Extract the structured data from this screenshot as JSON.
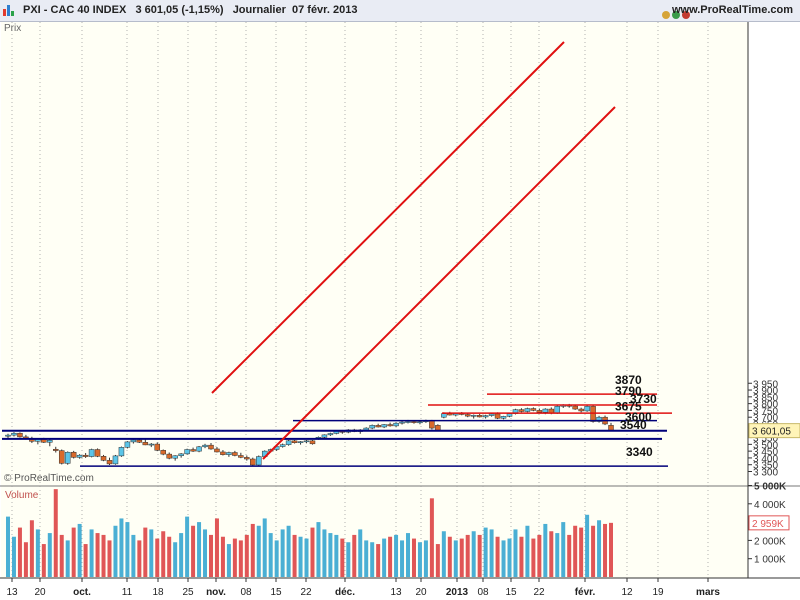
{
  "header": {
    "title": "PXI - CAC 40 INDEX   3 601,05 (-1,15%)   Journalier  07 févr. 2013",
    "site": "www.ProRealTime.com"
  },
  "labels": {
    "price_axis_name": "Prix",
    "volume_panel_name": "Volume",
    "copyright": "© ProRealTime.com"
  },
  "chart_data": [
    {
      "type": "candlestick",
      "ylim": [
        3280,
        3950
      ],
      "yticks": [
        3300,
        3350,
        3400,
        3450,
        3500,
        3550,
        3600,
        3650,
        3700,
        3750,
        3800,
        3850,
        3900,
        3950
      ],
      "ytick_labels": [
        "3 300",
        "3 350",
        "3 400",
        "3 450",
        "3 500",
        "3 550",
        "3 600",
        "3 650",
        "3 700",
        "3 750",
        "3 800",
        "3 850",
        "3 900",
        "3 950"
      ],
      "last_price": 3601.05,
      "last_price_label": "3 601,05",
      "x_tick_labels": [
        "13",
        "20",
        "oct.",
        "11",
        "18",
        "25",
        "nov.",
        "08",
        "15",
        "22",
        "déc.",
        "13",
        "20",
        "2013",
        "08",
        "15",
        "22",
        "févr.",
        "12",
        "19",
        "mars"
      ],
      "x_tick_bold": [
        "oct.",
        "nov.",
        "déc.",
        "2013",
        "févr.",
        "mars"
      ],
      "candles": [
        [
          3560,
          3578,
          3540,
          3568
        ],
        [
          3568,
          3590,
          3558,
          3582
        ],
        [
          3582,
          3588,
          3550,
          3555
        ],
        [
          3555,
          3570,
          3535,
          3542
        ],
        [
          3542,
          3556,
          3510,
          3522
        ],
        [
          3522,
          3546,
          3500,
          3540
        ],
        [
          3540,
          3548,
          3510,
          3515
        ],
        [
          3515,
          3536,
          3486,
          3530
        ],
        [
          3464,
          3482,
          3440,
          3454
        ],
        [
          3454,
          3462,
          3352,
          3360
        ],
        [
          3360,
          3448,
          3350,
          3442
        ],
        [
          3442,
          3452,
          3396,
          3404
        ],
        [
          3404,
          3428,
          3394,
          3420
        ],
        [
          3420,
          3436,
          3400,
          3410
        ],
        [
          3410,
          3468,
          3404,
          3462
        ],
        [
          3462,
          3470,
          3406,
          3412
        ],
        [
          3412,
          3422,
          3376,
          3382
        ],
        [
          3382,
          3402,
          3348,
          3356
        ],
        [
          3356,
          3422,
          3350,
          3415
        ],
        [
          3415,
          3484,
          3408,
          3478
        ],
        [
          3478,
          3524,
          3470,
          3518
        ],
        [
          3518,
          3534,
          3506,
          3532
        ],
        [
          3532,
          3544,
          3510,
          3515
        ],
        [
          3515,
          3535,
          3494,
          3496
        ],
        [
          3496,
          3510,
          3480,
          3502
        ],
        [
          3502,
          3514,
          3450,
          3456
        ],
        [
          3456,
          3462,
          3420,
          3428
        ],
        [
          3428,
          3440,
          3390,
          3398
        ],
        [
          3398,
          3420,
          3380,
          3416
        ],
        [
          3416,
          3436,
          3402,
          3430
        ],
        [
          3430,
          3468,
          3424,
          3462
        ],
        [
          3462,
          3476,
          3444,
          3450
        ],
        [
          3450,
          3488,
          3442,
          3482
        ],
        [
          3482,
          3504,
          3472,
          3494
        ],
        [
          3494,
          3510,
          3460,
          3466
        ],
        [
          3466,
          3480,
          3440,
          3444
        ],
        [
          3444,
          3458,
          3418,
          3424
        ],
        [
          3424,
          3446,
          3408,
          3440
        ],
        [
          3440,
          3452,
          3412,
          3418
        ],
        [
          3418,
          3438,
          3398,
          3404
        ],
        [
          3404,
          3418,
          3380,
          3392
        ],
        [
          3392,
          3402,
          3340,
          3348
        ],
        [
          3348,
          3418,
          3340,
          3410
        ],
        [
          3410,
          3456,
          3404,
          3450
        ],
        [
          3450,
          3468,
          3440,
          3462
        ],
        [
          3462,
          3490,
          3452,
          3484
        ],
        [
          3484,
          3506,
          3476,
          3498
        ],
        [
          3498,
          3532,
          3490,
          3526
        ],
        [
          3526,
          3532,
          3506,
          3512
        ],
        [
          3512,
          3524,
          3498,
          3520
        ],
        [
          3520,
          3532,
          3508,
          3526
        ],
        [
          3526,
          3532,
          3498,
          3504
        ],
        [
          3540,
          3558,
          3534,
          3552
        ],
        [
          3552,
          3574,
          3546,
          3570
        ],
        [
          3570,
          3586,
          3562,
          3580
        ],
        [
          3580,
          3602,
          3574,
          3596
        ],
        [
          3596,
          3606,
          3578,
          3590
        ],
        [
          3590,
          3612,
          3582,
          3606
        ],
        [
          3606,
          3614,
          3590,
          3594
        ],
        [
          3594,
          3612,
          3578,
          3606
        ],
        [
          3606,
          3626,
          3596,
          3620
        ],
        [
          3620,
          3646,
          3612,
          3640
        ],
        [
          3640,
          3652,
          3624,
          3628
        ],
        [
          3628,
          3650,
          3620,
          3646
        ],
        [
          3646,
          3660,
          3630,
          3636
        ],
        [
          3636,
          3662,
          3626,
          3656
        ],
        [
          3656,
          3672,
          3646,
          3664
        ],
        [
          3664,
          3680,
          3654,
          3668
        ],
        [
          3668,
          3678,
          3652,
          3660
        ],
        [
          3660,
          3672,
          3648,
          3666
        ],
        [
          3666,
          3682,
          3658,
          3674
        ],
        [
          3674,
          3680,
          3610,
          3620
        ],
        [
          3640,
          3648,
          3596,
          3602
        ],
        [
          3700,
          3736,
          3692,
          3726
        ],
        [
          3726,
          3740,
          3712,
          3716
        ],
        [
          3716,
          3734,
          3706,
          3728
        ],
        [
          3728,
          3738,
          3714,
          3720
        ],
        [
          3720,
          3732,
          3700,
          3708
        ],
        [
          3708,
          3720,
          3690,
          3714
        ],
        [
          3714,
          3724,
          3698,
          3702
        ],
        [
          3702,
          3718,
          3690,
          3712
        ],
        [
          3712,
          3730,
          3704,
          3724
        ],
        [
          3724,
          3736,
          3686,
          3692
        ],
        [
          3692,
          3710,
          3684,
          3706
        ],
        [
          3706,
          3730,
          3700,
          3726
        ],
        [
          3726,
          3762,
          3720,
          3756
        ],
        [
          3756,
          3766,
          3736,
          3742
        ],
        [
          3742,
          3770,
          3736,
          3764
        ],
        [
          3764,
          3772,
          3744,
          3750
        ],
        [
          3750,
          3764,
          3728,
          3736
        ],
        [
          3736,
          3766,
          3722,
          3760
        ],
        [
          3760,
          3772,
          3722,
          3730
        ],
        [
          3730,
          3786,
          3724,
          3780
        ],
        [
          3780,
          3796,
          3768,
          3788
        ],
        [
          3788,
          3798,
          3770,
          3782
        ],
        [
          3782,
          3790,
          3754,
          3760
        ],
        [
          3760,
          3770,
          3736,
          3746
        ],
        [
          3746,
          3792,
          3740,
          3780
        ],
        [
          3780,
          3786,
          3660,
          3668
        ],
        [
          3668,
          3710,
          3660,
          3700
        ],
        [
          3700,
          3712,
          3642,
          3650
        ],
        [
          3640,
          3658,
          3598,
          3601
        ]
      ]
    },
    {
      "type": "bar",
      "title": "Volume",
      "ylim": [
        0,
        5400
      ],
      "yticks": [
        1000,
        2000,
        3000,
        4000,
        5000
      ],
      "ytick_labels": [
        "1 000K",
        "2 000K",
        "3 000K",
        "4 000K",
        "5 000K"
      ],
      "last_volume_label": "2 959K",
      "volume_up_color": "#4aafd4",
      "volume_down_color": "#e05656",
      "values": [
        3300,
        2200,
        2700,
        1900,
        3100,
        2600,
        1800,
        2400,
        4800,
        2300,
        2000,
        2700,
        2900,
        1800,
        2600,
        2400,
        2300,
        2000,
        2800,
        3200,
        3000,
        2300,
        2000,
        2700,
        2600,
        2100,
        2500,
        2200,
        1900,
        2400,
        3300,
        2800,
        3000,
        2600,
        2300,
        3200,
        2200,
        1800,
        2100,
        2000,
        2300,
        2900,
        2800,
        3200,
        2400,
        2000,
        2600,
        2800,
        2300,
        2200,
        2100,
        2700,
        3000,
        2600,
        2400,
        2300,
        2100,
        1900,
        2300,
        2600,
        2000,
        1900,
        1800,
        2100,
        2200,
        2300,
        2000,
        2400,
        2100,
        1900,
        2000,
        4300,
        1800,
        2500,
        2200,
        2000,
        2100,
        2300,
        2500,
        2300,
        2700,
        2600,
        2200,
        2000,
        2100,
        2600,
        2200,
        2800,
        2100,
        2300,
        2900,
        2500,
        2400,
        3000,
        2300,
        2800,
        2700,
        3400,
        2800,
        3100,
        2900,
        2959
      ]
    }
  ],
  "annotations": {
    "levels": [
      {
        "price": 3870,
        "label": "3870",
        "color": "#e01010"
      },
      {
        "price": 3790,
        "label": "3790",
        "color": "#e01010"
      },
      {
        "price": 3730,
        "label": "3730",
        "color": "#e01010"
      },
      {
        "price": 3675,
        "label": "3675",
        "color": "#00007a"
      },
      {
        "price": 3600,
        "label": "3600",
        "color": "#00007a"
      },
      {
        "price": 3540,
        "label": "3540",
        "color": "#00007a"
      },
      {
        "price": 3340,
        "label": "3340",
        "color": "#00007a"
      }
    ]
  },
  "colors": {
    "up_candle": "#5bc5e8",
    "down_candle": "#d96a2b",
    "chart_background": "#fffff5",
    "grid": "#a0a0a0",
    "support_line": "#00007a",
    "resistance_line": "#e01010"
  }
}
